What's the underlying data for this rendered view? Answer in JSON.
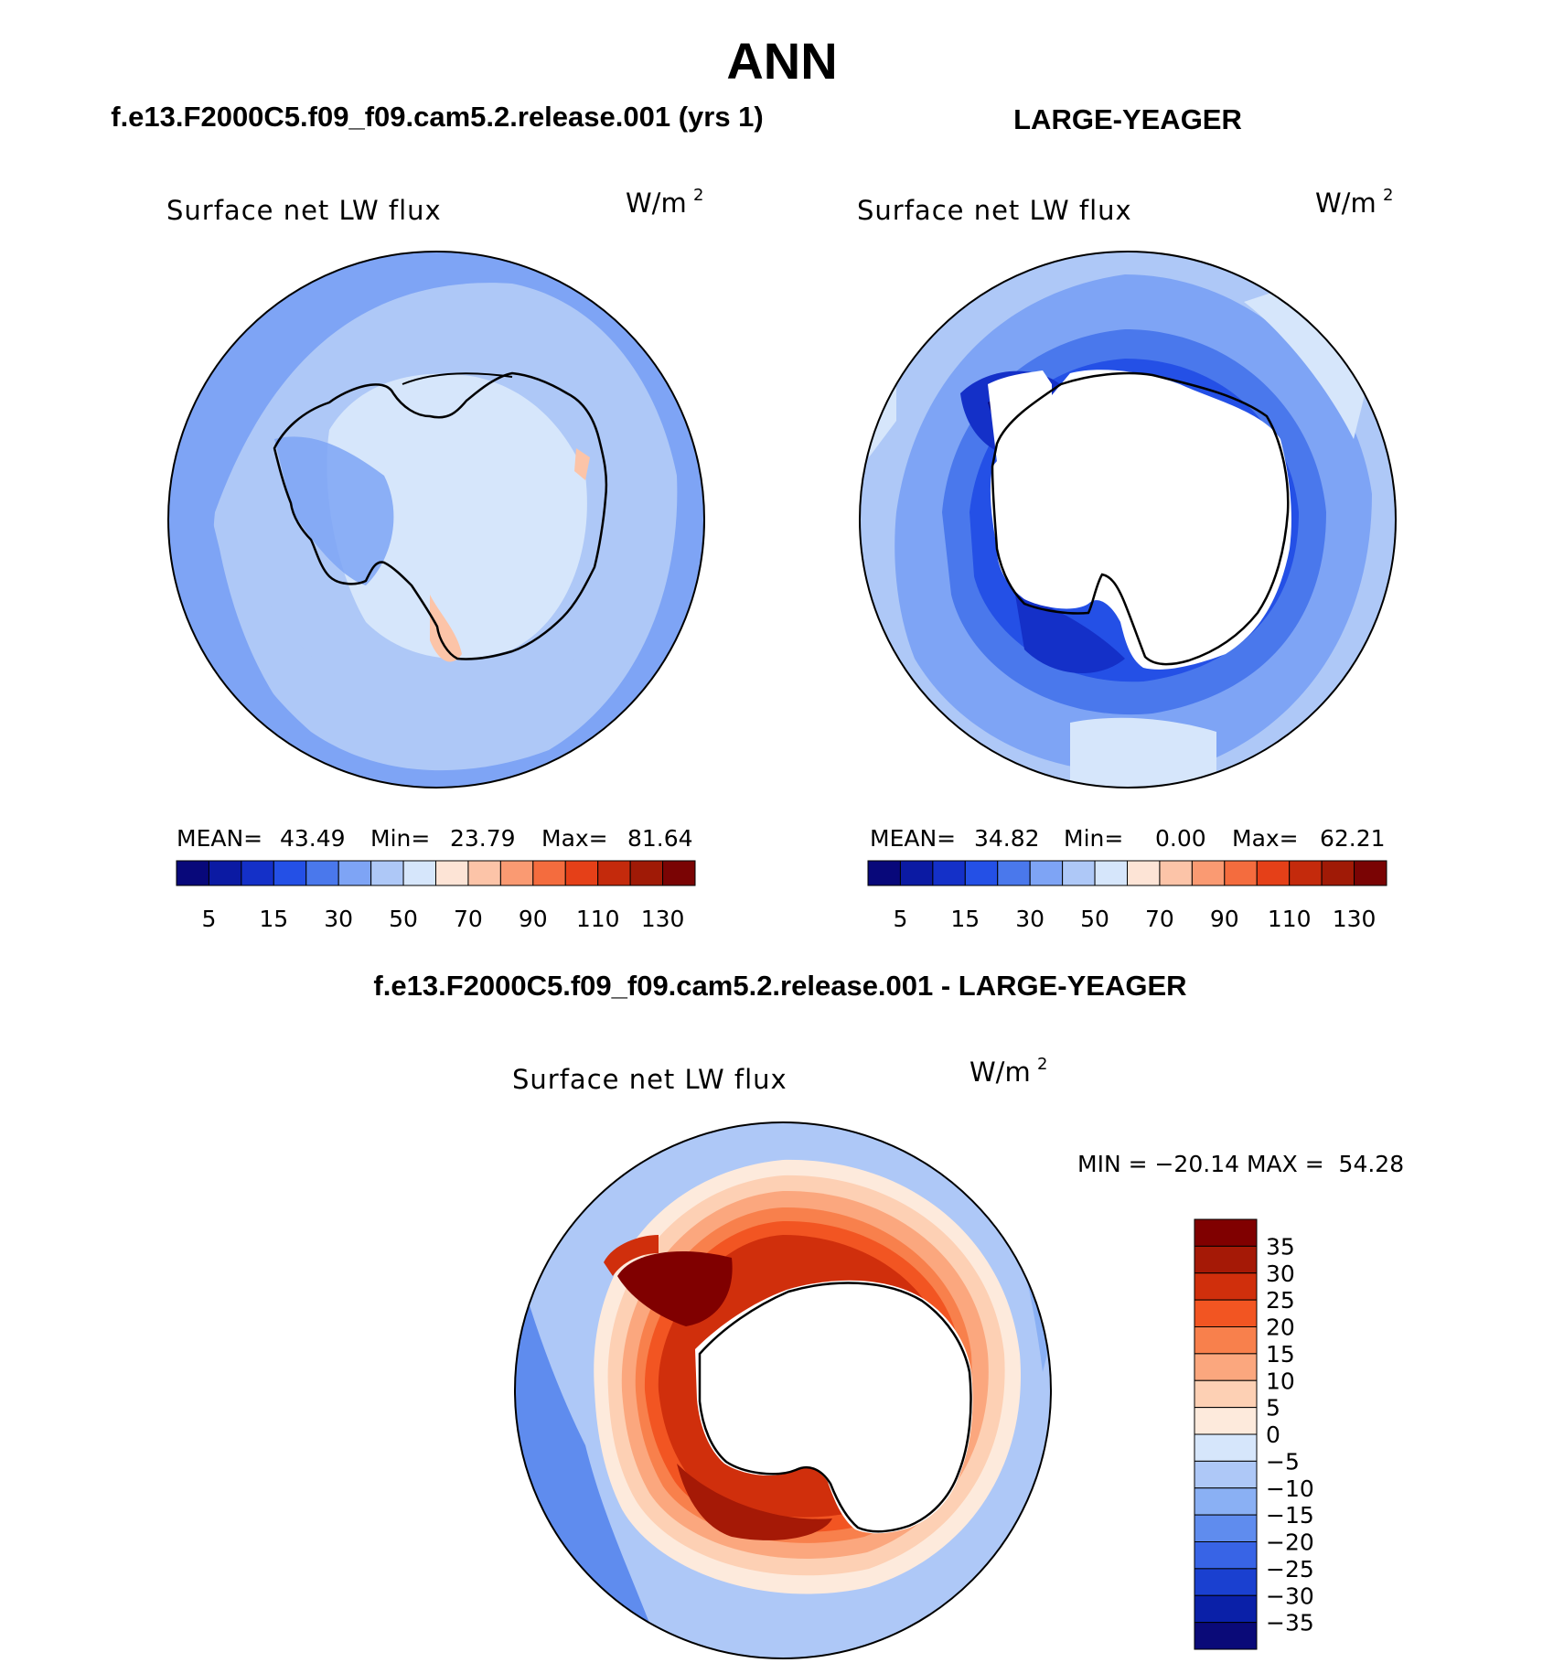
{
  "page_title": "ANN",
  "panels": [
    {
      "heading": "f.e13.F2000C5.f09_f09.cam5.2.release.001 (yrs 1)",
      "map_title": "Surface net LW flux",
      "units": "W/m",
      "units_exp": "2",
      "stats": {
        "mean_label": "MEAN=",
        "mean": "43.49",
        "min_label": "Min=",
        "min": "23.79",
        "max_label": "Max=",
        "max": "81.64"
      },
      "colorbar_ticks": [
        "5",
        "15",
        "30",
        "50",
        "70",
        "90",
        "110",
        "130"
      ]
    },
    {
      "heading": "LARGE-YEAGER",
      "map_title": "Surface net LW flux",
      "units": "W/m",
      "units_exp": "2",
      "stats": {
        "mean_label": "MEAN=",
        "mean": "34.82",
        "min_label": "Min=",
        "min": "0.00",
        "max_label": "Max=",
        "max": "62.21"
      },
      "colorbar_ticks": [
        "5",
        "15",
        "30",
        "50",
        "70",
        "90",
        "110",
        "130"
      ]
    }
  ],
  "difference": {
    "heading": "f.e13.F2000C5.f09_f09.cam5.2.release.001 - LARGE-YEAGER",
    "map_title": "Surface net LW flux",
    "units": "W/m",
    "units_exp": "2",
    "minmax": "MIN = −20.14 MAX =  54.28",
    "colorbar_labels": [
      "35",
      "30",
      "25",
      "20",
      "15",
      "10",
      "5",
      "0",
      "−5",
      "−10",
      "−15",
      "−20",
      "−25",
      "−30",
      "−35"
    ]
  },
  "colors": {
    "abs_scale": [
      "#08087a",
      "#0b1aa3",
      "#1430c8",
      "#2450e6",
      "#4a78ec",
      "#7ea4f5",
      "#aec8f7",
      "#d6e6fb",
      "#fde4d6",
      "#fcc4a8",
      "#fa9a72",
      "#f46c3e",
      "#e54018",
      "#c42a0c",
      "#a01a06",
      "#7a0404"
    ],
    "diff_scale": [
      "#800000",
      "#a51906",
      "#d02f0c",
      "#f25522",
      "#f8804c",
      "#fba77e",
      "#fdd0b4",
      "#fdeadc",
      "#d6e6fb",
      "#aec8f7",
      "#8ab0f4",
      "#5f8cee",
      "#3864e6",
      "#1a40d0",
      "#0a20a8",
      "#0a0a78"
    ],
    "land": "#ffffff",
    "coast": "#000000"
  }
}
